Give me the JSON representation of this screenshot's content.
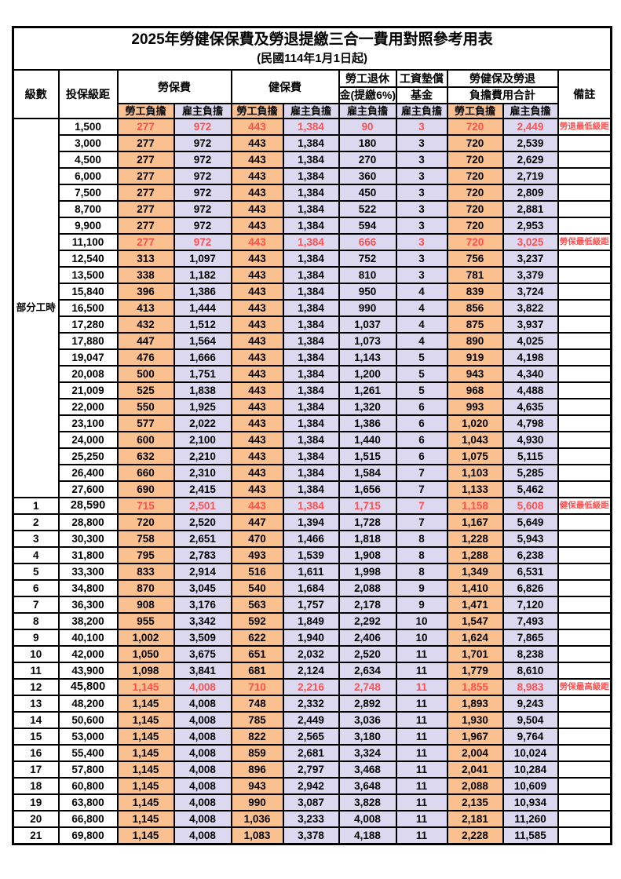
{
  "title": "2025年勞健保保費及勞退提繳三合一費用對照參考用表",
  "subtitle": "(民國114年1月1日起)",
  "colors": {
    "employee_bg": "#FAC090",
    "employer_bg": "#DCD8F0",
    "highlight_text": "#FF5050",
    "grid_line": "#000000"
  },
  "header": {
    "level": "級數",
    "bracket": "投保級距",
    "labor_insurance": "勞保費",
    "health_insurance": "健保費",
    "pension_line1": "勞工退休",
    "pension_line2": "金(提繳6%)",
    "wage_fund_line1": "工資墊償",
    "wage_fund_line2": "基金",
    "total_line1": "勞健保及勞退",
    "total_line2": "負擔費用合計",
    "remark": "備註",
    "employee_label": "勞工負擔",
    "employer_label": "雇主負擔"
  },
  "table": {
    "part_time_label": "部分工時",
    "part_time_rowspan": 23,
    "cell_classes": [
      "emp",
      "er",
      "emp",
      "er",
      "er",
      "er",
      "emp",
      "er"
    ],
    "rows": [
      {
        "level": "PART",
        "bracket": "1,500",
        "values": [
          "277",
          "972",
          "443",
          "1,384",
          "90",
          "3",
          "720",
          "2,449"
        ],
        "remark": "勞退最低級距",
        "hl": true,
        "bold": false
      },
      {
        "level": "",
        "bracket": "3,000",
        "values": [
          "277",
          "972",
          "443",
          "1,384",
          "180",
          "3",
          "720",
          "2,539"
        ],
        "remark": "",
        "hl": false,
        "bold": false
      },
      {
        "level": "",
        "bracket": "4,500",
        "values": [
          "277",
          "972",
          "443",
          "1,384",
          "270",
          "3",
          "720",
          "2,629"
        ],
        "remark": "",
        "hl": false,
        "bold": false
      },
      {
        "level": "",
        "bracket": "6,000",
        "values": [
          "277",
          "972",
          "443",
          "1,384",
          "360",
          "3",
          "720",
          "2,719"
        ],
        "remark": "",
        "hl": false,
        "bold": false
      },
      {
        "level": "",
        "bracket": "7,500",
        "values": [
          "277",
          "972",
          "443",
          "1,384",
          "450",
          "3",
          "720",
          "2,809"
        ],
        "remark": "",
        "hl": false,
        "bold": false
      },
      {
        "level": "",
        "bracket": "8,700",
        "values": [
          "277",
          "972",
          "443",
          "1,384",
          "522",
          "3",
          "720",
          "2,881"
        ],
        "remark": "",
        "hl": false,
        "bold": false
      },
      {
        "level": "",
        "bracket": "9,900",
        "values": [
          "277",
          "972",
          "443",
          "1,384",
          "594",
          "3",
          "720",
          "2,953"
        ],
        "remark": "",
        "hl": false,
        "bold": false
      },
      {
        "level": "",
        "bracket": "11,100",
        "values": [
          "277",
          "972",
          "443",
          "1,384",
          "666",
          "3",
          "720",
          "3,025"
        ],
        "remark": "勞保最低級距",
        "hl": true,
        "bold": false
      },
      {
        "level": "",
        "bracket": "12,540",
        "values": [
          "313",
          "1,097",
          "443",
          "1,384",
          "752",
          "3",
          "756",
          "3,237"
        ],
        "remark": "",
        "hl": false,
        "bold": false
      },
      {
        "level": "",
        "bracket": "13,500",
        "values": [
          "338",
          "1,182",
          "443",
          "1,384",
          "810",
          "3",
          "781",
          "3,379"
        ],
        "remark": "",
        "hl": false,
        "bold": false
      },
      {
        "level": "",
        "bracket": "15,840",
        "values": [
          "396",
          "1,386",
          "443",
          "1,384",
          "950",
          "4",
          "839",
          "3,724"
        ],
        "remark": "",
        "hl": false,
        "bold": false
      },
      {
        "level": "",
        "bracket": "16,500",
        "values": [
          "413",
          "1,444",
          "443",
          "1,384",
          "990",
          "4",
          "856",
          "3,822"
        ],
        "remark": "",
        "hl": false,
        "bold": false
      },
      {
        "level": "",
        "bracket": "17,280",
        "values": [
          "432",
          "1,512",
          "443",
          "1,384",
          "1,037",
          "4",
          "875",
          "3,937"
        ],
        "remark": "",
        "hl": false,
        "bold": false
      },
      {
        "level": "",
        "bracket": "17,880",
        "values": [
          "447",
          "1,564",
          "443",
          "1,384",
          "1,073",
          "4",
          "890",
          "4,025"
        ],
        "remark": "",
        "hl": false,
        "bold": false
      },
      {
        "level": "",
        "bracket": "19,047",
        "values": [
          "476",
          "1,666",
          "443",
          "1,384",
          "1,143",
          "5",
          "919",
          "4,198"
        ],
        "remark": "",
        "hl": false,
        "bold": false
      },
      {
        "level": "",
        "bracket": "20,008",
        "values": [
          "500",
          "1,751",
          "443",
          "1,384",
          "1,200",
          "5",
          "943",
          "4,340"
        ],
        "remark": "",
        "hl": false,
        "bold": false
      },
      {
        "level": "",
        "bracket": "21,009",
        "values": [
          "525",
          "1,838",
          "443",
          "1,384",
          "1,261",
          "5",
          "968",
          "4,488"
        ],
        "remark": "",
        "hl": false,
        "bold": false
      },
      {
        "level": "",
        "bracket": "22,000",
        "values": [
          "550",
          "1,925",
          "443",
          "1,384",
          "1,320",
          "6",
          "993",
          "4,635"
        ],
        "remark": "",
        "hl": false,
        "bold": false
      },
      {
        "level": "",
        "bracket": "23,100",
        "values": [
          "577",
          "2,022",
          "443",
          "1,384",
          "1,386",
          "6",
          "1,020",
          "4,798"
        ],
        "remark": "",
        "hl": false,
        "bold": false
      },
      {
        "level": "",
        "bracket": "24,000",
        "values": [
          "600",
          "2,100",
          "443",
          "1,384",
          "1,440",
          "6",
          "1,043",
          "4,930"
        ],
        "remark": "",
        "hl": false,
        "bold": false
      },
      {
        "level": "",
        "bracket": "25,250",
        "values": [
          "632",
          "2,210",
          "443",
          "1,384",
          "1,515",
          "6",
          "1,075",
          "5,115"
        ],
        "remark": "",
        "hl": false,
        "bold": false
      },
      {
        "level": "",
        "bracket": "26,400",
        "values": [
          "660",
          "2,310",
          "443",
          "1,384",
          "1,584",
          "7",
          "1,103",
          "5,285"
        ],
        "remark": "",
        "hl": false,
        "bold": false
      },
      {
        "level": "",
        "bracket": "27,600",
        "values": [
          "690",
          "2,415",
          "443",
          "1,384",
          "1,656",
          "7",
          "1,133",
          "5,462"
        ],
        "remark": "",
        "hl": false,
        "bold": false
      },
      {
        "level": "1",
        "bracket": "28,590",
        "values": [
          "715",
          "2,501",
          "443",
          "1,384",
          "1,715",
          "7",
          "1,158",
          "5,608"
        ],
        "remark": "健保最低級距",
        "hl": true,
        "bold": true
      },
      {
        "level": "2",
        "bracket": "28,800",
        "values": [
          "720",
          "2,520",
          "447",
          "1,394",
          "1,728",
          "7",
          "1,167",
          "5,649"
        ],
        "remark": "",
        "hl": false,
        "bold": false
      },
      {
        "level": "3",
        "bracket": "30,300",
        "values": [
          "758",
          "2,651",
          "470",
          "1,466",
          "1,818",
          "8",
          "1,228",
          "5,943"
        ],
        "remark": "",
        "hl": false,
        "bold": false
      },
      {
        "level": "4",
        "bracket": "31,800",
        "values": [
          "795",
          "2,783",
          "493",
          "1,539",
          "1,908",
          "8",
          "1,288",
          "6,238"
        ],
        "remark": "",
        "hl": false,
        "bold": false
      },
      {
        "level": "5",
        "bracket": "33,300",
        "values": [
          "833",
          "2,914",
          "516",
          "1,611",
          "1,998",
          "8",
          "1,349",
          "6,531"
        ],
        "remark": "",
        "hl": false,
        "bold": false
      },
      {
        "level": "6",
        "bracket": "34,800",
        "values": [
          "870",
          "3,045",
          "540",
          "1,684",
          "2,088",
          "9",
          "1,410",
          "6,826"
        ],
        "remark": "",
        "hl": false,
        "bold": false
      },
      {
        "level": "7",
        "bracket": "36,300",
        "values": [
          "908",
          "3,176",
          "563",
          "1,757",
          "2,178",
          "9",
          "1,471",
          "7,120"
        ],
        "remark": "",
        "hl": false,
        "bold": false
      },
      {
        "level": "8",
        "bracket": "38,200",
        "values": [
          "955",
          "3,342",
          "592",
          "1,849",
          "2,292",
          "10",
          "1,547",
          "7,493"
        ],
        "remark": "",
        "hl": false,
        "bold": false
      },
      {
        "level": "9",
        "bracket": "40,100",
        "values": [
          "1,002",
          "3,509",
          "622",
          "1,940",
          "2,406",
          "10",
          "1,624",
          "7,865"
        ],
        "remark": "",
        "hl": false,
        "bold": false
      },
      {
        "level": "10",
        "bracket": "42,000",
        "values": [
          "1,050",
          "3,675",
          "651",
          "2,032",
          "2,520",
          "11",
          "1,701",
          "8,238"
        ],
        "remark": "",
        "hl": false,
        "bold": false
      },
      {
        "level": "11",
        "bracket": "43,900",
        "values": [
          "1,098",
          "3,841",
          "681",
          "2,124",
          "2,634",
          "11",
          "1,779",
          "8,610"
        ],
        "remark": "",
        "hl": false,
        "bold": false
      },
      {
        "level": "12",
        "bracket": "45,800",
        "values": [
          "1,145",
          "4,008",
          "710",
          "2,216",
          "2,748",
          "11",
          "1,855",
          "8,983"
        ],
        "remark": "勞保最高級距",
        "hl": true,
        "bold": true
      },
      {
        "level": "13",
        "bracket": "48,200",
        "values": [
          "1,145",
          "4,008",
          "748",
          "2,332",
          "2,892",
          "11",
          "1,893",
          "9,243"
        ],
        "remark": "",
        "hl": false,
        "bold": false
      },
      {
        "level": "14",
        "bracket": "50,600",
        "values": [
          "1,145",
          "4,008",
          "785",
          "2,449",
          "3,036",
          "11",
          "1,930",
          "9,504"
        ],
        "remark": "",
        "hl": false,
        "bold": false
      },
      {
        "level": "15",
        "bracket": "53,000",
        "values": [
          "1,145",
          "4,008",
          "822",
          "2,565",
          "3,180",
          "11",
          "1,967",
          "9,764"
        ],
        "remark": "",
        "hl": false,
        "bold": false
      },
      {
        "level": "16",
        "bracket": "55,400",
        "values": [
          "1,145",
          "4,008",
          "859",
          "2,681",
          "3,324",
          "11",
          "2,004",
          "10,024"
        ],
        "remark": "",
        "hl": false,
        "bold": false
      },
      {
        "level": "17",
        "bracket": "57,800",
        "values": [
          "1,145",
          "4,008",
          "896",
          "2,797",
          "3,468",
          "11",
          "2,041",
          "10,284"
        ],
        "remark": "",
        "hl": false,
        "bold": false
      },
      {
        "level": "18",
        "bracket": "60,800",
        "values": [
          "1,145",
          "4,008",
          "943",
          "2,942",
          "3,648",
          "11",
          "2,088",
          "10,609"
        ],
        "remark": "",
        "hl": false,
        "bold": false
      },
      {
        "level": "19",
        "bracket": "63,800",
        "values": [
          "1,145",
          "4,008",
          "990",
          "3,087",
          "3,828",
          "11",
          "2,135",
          "10,934"
        ],
        "remark": "",
        "hl": false,
        "bold": false
      },
      {
        "level": "20",
        "bracket": "66,800",
        "values": [
          "1,145",
          "4,008",
          "1,036",
          "3,233",
          "4,008",
          "11",
          "2,181",
          "11,260"
        ],
        "remark": "",
        "hl": false,
        "bold": false
      },
      {
        "level": "21",
        "bracket": "69,800",
        "values": [
          "1,145",
          "4,008",
          "1,083",
          "3,378",
          "4,188",
          "11",
          "2,228",
          "11,585"
        ],
        "remark": "",
        "hl": false,
        "bold": false
      }
    ]
  }
}
